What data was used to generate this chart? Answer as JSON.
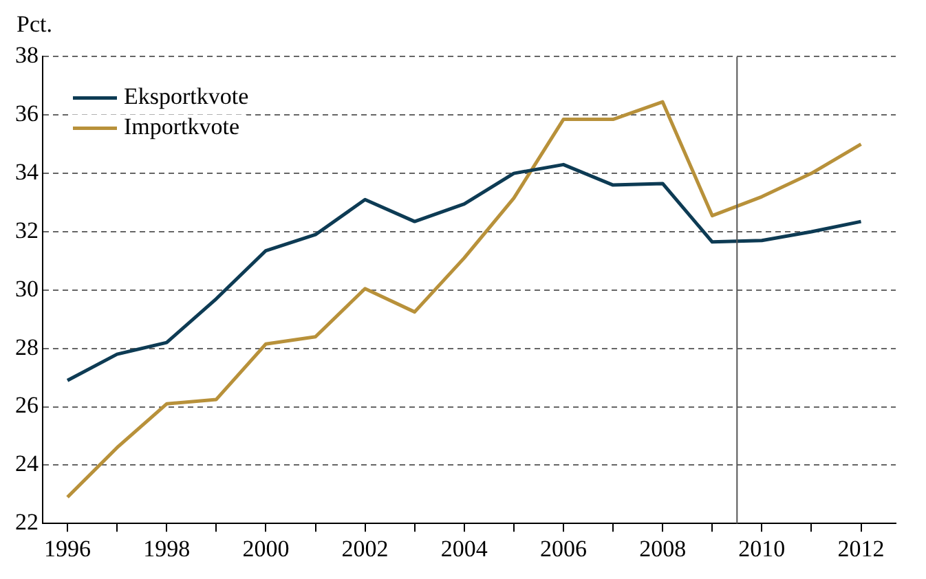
{
  "chart_data": {
    "type": "line",
    "ylabel": "Pct.",
    "x": [
      1996,
      1997,
      1998,
      1999,
      2000,
      2001,
      2002,
      2003,
      2004,
      2005,
      2006,
      2007,
      2008,
      2009,
      2010,
      2011,
      2012
    ],
    "series": [
      {
        "name": "Eksportkvote",
        "color": "#0d3b54",
        "values": [
          26.9,
          27.8,
          28.2,
          29.7,
          31.35,
          31.9,
          33.1,
          32.35,
          32.95,
          34.0,
          34.3,
          33.6,
          33.65,
          31.65,
          31.7,
          32.0,
          32.35
        ]
      },
      {
        "name": "Importkvote",
        "color": "#b8913a",
        "values": [
          22.9,
          24.6,
          26.1,
          26.25,
          28.15,
          28.4,
          30.05,
          29.25,
          31.1,
          33.15,
          35.85,
          35.85,
          36.45,
          32.55,
          33.2,
          34.0,
          35.0
        ]
      }
    ],
    "xlim": [
      1995.5,
      2012.7
    ],
    "xticks": [
      1996,
      {
        "value": 1997,
        "label": null
      },
      1998,
      {
        "value": 1999,
        "label": null
      },
      2000,
      {
        "value": 2001,
        "label": null
      },
      2002,
      {
        "value": 2003,
        "label": null
      },
      2004,
      {
        "value": 2005,
        "label": null
      },
      2006,
      {
        "value": 2007,
        "label": null
      },
      2008,
      {
        "value": 2009,
        "label": null
      },
      2010,
      {
        "value": 2011,
        "label": null
      },
      2012
    ],
    "ylim": [
      22,
      38
    ],
    "yticks": [
      22,
      24,
      26,
      28,
      30,
      32,
      34,
      36,
      38
    ],
    "ref_lines": [
      {
        "axis": "x",
        "value": 2009.5,
        "color": "#555555",
        "line_style": "solid"
      }
    ],
    "grid": "y",
    "legend": "top left",
    "marker": "none",
    "line_style": "solid"
  }
}
